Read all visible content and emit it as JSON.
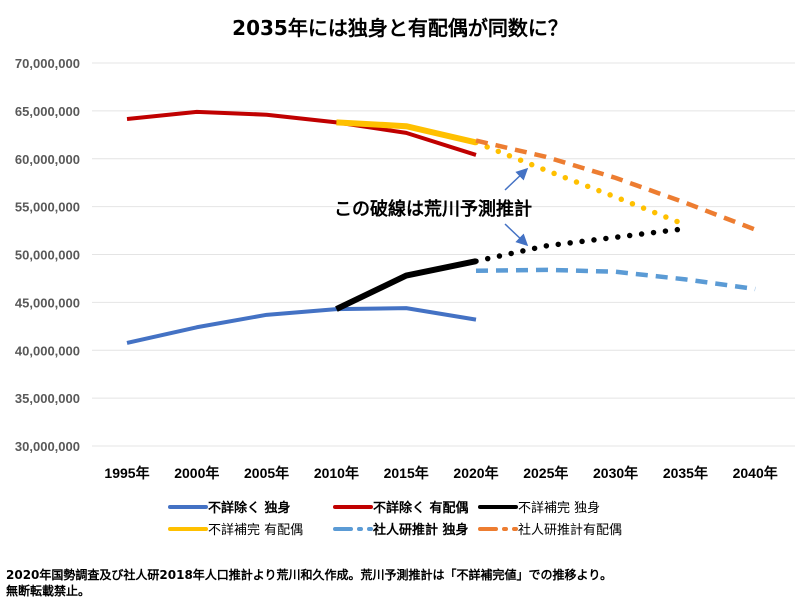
{
  "chart_data": {
    "type": "line",
    "title": "2035年には独身と有配偶が同数に？",
    "x": [
      "1995年",
      "2000年",
      "2005年",
      "2010年",
      "2015年",
      "2020年",
      "2025年",
      "2030年",
      "2035年",
      "2040年"
    ],
    "ylim": [
      30000000,
      70000000
    ],
    "yticks": [
      "30,000,000",
      "35,000,000",
      "40,000,000",
      "45,000,000",
      "50,000,000",
      "55,000,000",
      "60,000,000",
      "65,000,000",
      "70,000,000"
    ],
    "grid": true,
    "legend_position": "bottom",
    "annotation": "この破線は荒川予測推計",
    "series": [
      {
        "name": "不詳除く 独身",
        "color": "#4472C4",
        "style": "solid",
        "values": [
          40760000,
          42400000,
          43700000,
          44300000,
          44400000,
          43200000,
          null,
          null,
          null,
          null
        ]
      },
      {
        "name": "不詳除く 有配偶",
        "color": "#C00000",
        "style": "solid",
        "values": [
          64150000,
          64900000,
          64600000,
          63800000,
          62700000,
          60400000,
          null,
          null,
          null,
          null
        ]
      },
      {
        "name": "不詳補完 独身",
        "color": "#000000",
        "style": "solid-then-dotted",
        "projection_from": "2020年",
        "values": [
          null,
          null,
          null,
          44300000,
          47800000,
          49300000,
          50900000,
          51800000,
          52700000,
          null
        ]
      },
      {
        "name": "不詳補完 有配偶",
        "color": "#FFC000",
        "style": "solid-then-dotted",
        "projection_from": "2020年",
        "values": [
          null,
          null,
          null,
          63800000,
          63400000,
          61700000,
          58800000,
          56000000,
          53100000,
          null
        ]
      },
      {
        "name": "社人研推計 独身",
        "color": "#5B9BD5",
        "style": "dashed",
        "values": [
          null,
          null,
          null,
          null,
          null,
          48300000,
          48400000,
          48200000,
          47400000,
          46400000
        ]
      },
      {
        "name": "社人研推計有配偶",
        "color": "#ED7D31",
        "style": "dashed",
        "values": [
          null,
          null,
          null,
          null,
          null,
          61900000,
          60200000,
          58000000,
          55400000,
          52600000
        ]
      }
    ]
  },
  "footer": {
    "line1": "2020年国勢調査及び社人研2018年人口推計より荒川和久作成。荒川予測推計は「不詳補完値」での推移より。",
    "line2": "無断転載禁止。"
  }
}
